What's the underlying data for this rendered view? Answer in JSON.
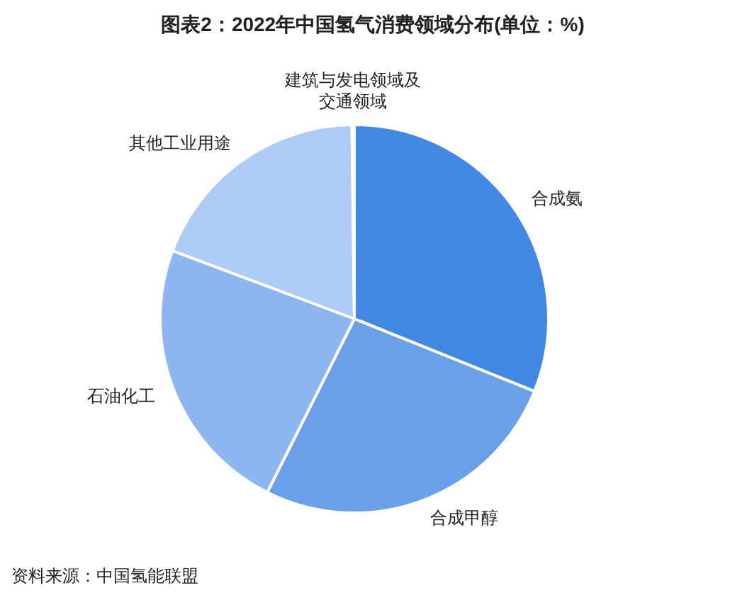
{
  "chart_data": {
    "type": "pie",
    "title": "图表2：2022年中国氢气消费领域分布(单位：%)",
    "categories": [
      "合成氨",
      "合成甲醇",
      "石油化工",
      "其他工业用途",
      "建筑与发电领域及交通领域"
    ],
    "values": [
      31.1,
      26.3,
      23.3,
      19.1,
      0.2
    ],
    "colors": [
      "#4287e1",
      "#6a9fe9",
      "#8db5ef",
      "#adcbf6",
      "#c9ddf9"
    ],
    "legend": false,
    "annotations": [
      "资料来源：中国氢能联盟"
    ]
  }
}
